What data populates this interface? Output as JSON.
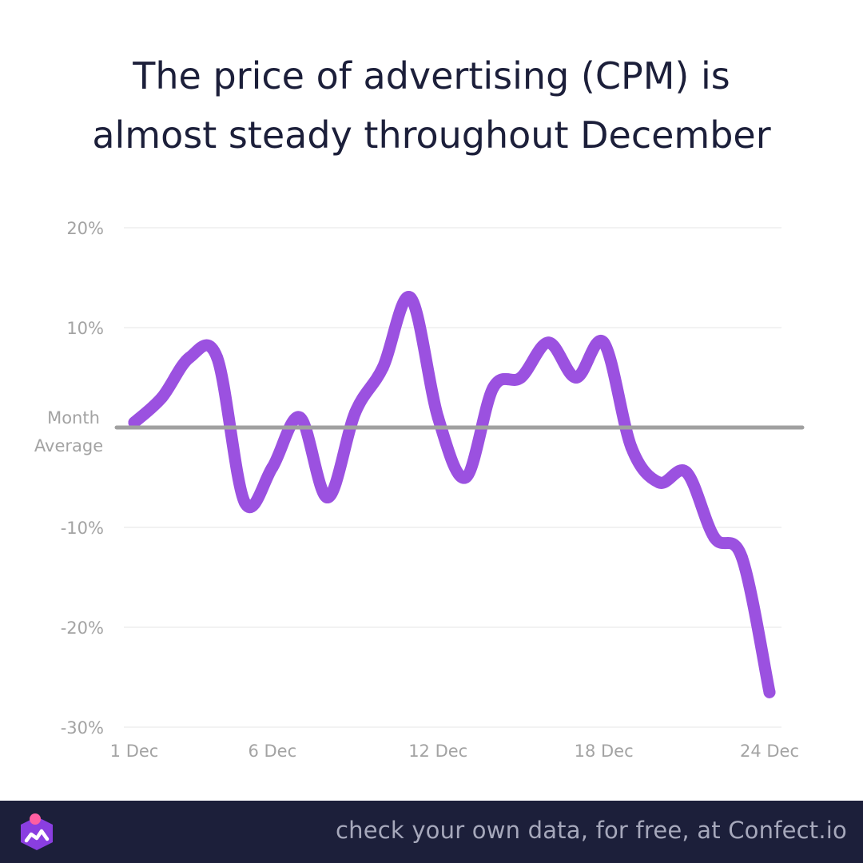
{
  "title": {
    "line1": "The price of advertising (CPM) is",
    "line2": "almost steady throughout December"
  },
  "chart_data": {
    "type": "line",
    "title": "The price of advertising (CPM) is almost steady throughout December",
    "xlabel": "",
    "ylabel": "",
    "x_tick_labels": [
      "1 Dec",
      "6 Dec",
      "12 Dec",
      "18 Dec",
      "24 Dec"
    ],
    "x_tick_positions": [
      1,
      6,
      12,
      18,
      24
    ],
    "y_tick_labels": [
      "20%",
      "10%",
      "-10%",
      "-20%",
      "-30%"
    ],
    "y_tick_values": [
      20,
      10,
      -10,
      -20,
      -30
    ],
    "ylim": [
      -30,
      20
    ],
    "xlim": [
      1,
      24
    ],
    "grid": true,
    "reference_line": {
      "label_line1": "Month",
      "label_line2": "Average",
      "value": 0,
      "color": "#a0a0a0"
    },
    "series": [
      {
        "color": "#9b51e0",
        "x": [
          1,
          2,
          3,
          4,
          5,
          6,
          7,
          8,
          9,
          10,
          11,
          12,
          13,
          14,
          15,
          16,
          17,
          18,
          19,
          20,
          21,
          22,
          23,
          24
        ],
        "values": [
          0.5,
          3,
          7,
          7,
          -7.5,
          -4,
          1,
          -7,
          1.5,
          6,
          13,
          1,
          -5,
          4,
          5,
          8.5,
          5,
          8.5,
          -2,
          -5.5,
          -4.5,
          -11,
          -13,
          -26.5
        ]
      }
    ]
  },
  "footer": {
    "text": "check your own data, for free, at Confect.io",
    "background": "#1c1f3a",
    "logo_icon": "confect-logo-icon"
  }
}
